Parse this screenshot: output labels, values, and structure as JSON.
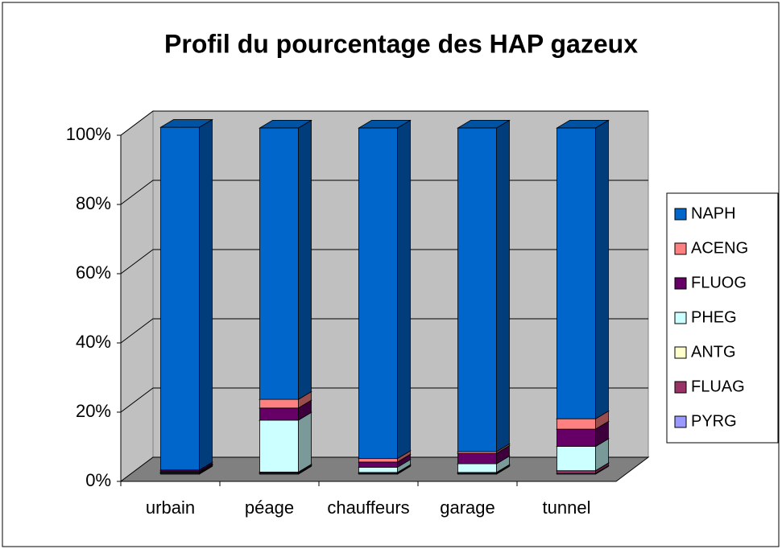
{
  "chart_data": {
    "type": "bar3d_stacked",
    "title": "Profil du pourcentage des HAP gazeux",
    "categories": [
      "urbain",
      "péage",
      "chauffeurs",
      "garage",
      "tunnel"
    ],
    "series": [
      {
        "name": "NAPH",
        "color": "#0066cc",
        "values": [
          99,
          78.4,
          95.5,
          93.5,
          84
        ]
      },
      {
        "name": "ACENG",
        "color": "#ff8080",
        "values": [
          0,
          2.5,
          1,
          0.5,
          3
        ]
      },
      {
        "name": "FLUOG",
        "color": "#660066",
        "values": [
          0.5,
          3.5,
          1.5,
          3,
          5
        ]
      },
      {
        "name": "PHEG",
        "color": "#ccffff",
        "values": [
          0.2,
          15,
          1.5,
          2.5,
          7
        ]
      },
      {
        "name": "ANTG",
        "color": "#ffffcc",
        "values": [
          0,
          0.1,
          0,
          0,
          0
        ]
      },
      {
        "name": "FLUAG",
        "color": "#993366",
        "values": [
          0.3,
          0.3,
          0.3,
          0.3,
          0.8
        ]
      },
      {
        "name": "PYRG",
        "color": "#9999ff",
        "values": [
          0.2,
          0.2,
          0.2,
          0.2,
          0.2
        ]
      }
    ],
    "ylim": [
      0,
      100
    ],
    "yticks": [
      {
        "value": 0,
        "label": "0%"
      },
      {
        "value": 20,
        "label": "20%"
      },
      {
        "value": 40,
        "label": "40%"
      },
      {
        "value": 60,
        "label": "60%"
      },
      {
        "value": 80,
        "label": "80%"
      },
      {
        "value": 100,
        "label": "100%"
      }
    ],
    "grid": true,
    "legend": "right"
  }
}
